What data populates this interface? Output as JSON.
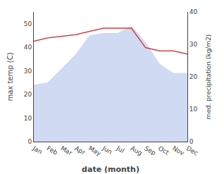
{
  "chart_data": {
    "type": "combo",
    "xlabel": "date (month)",
    "ylabel": "max temp (C)",
    "y2label": "med. precipitation (kg/m2)",
    "categories": [
      "Jan",
      "Feb",
      "Mar",
      "Apr",
      "May",
      "Jun",
      "Jul",
      "Aug",
      "Sep",
      "Oct",
      "Nov",
      "Dec"
    ],
    "series": [
      {
        "type": "area",
        "color": "#c8d4f0",
        "values": [
          24,
          25,
          31,
          37,
          45,
          46,
          46,
          49,
          42,
          33,
          29,
          29
        ]
      },
      {
        "type": "line",
        "color": "#cc4444",
        "axis": "y2",
        "values": [
          31,
          32,
          32.5,
          33,
          34,
          35,
          35,
          35,
          29,
          28,
          28,
          27
        ]
      }
    ],
    "ylim": [
      0,
      55
    ],
    "yticks": [
      0,
      10,
      20,
      30,
      40,
      50
    ],
    "y2lim": [
      0,
      40
    ],
    "y2ticks": [
      0,
      10,
      20,
      30,
      40
    ],
    "grid": false
  }
}
